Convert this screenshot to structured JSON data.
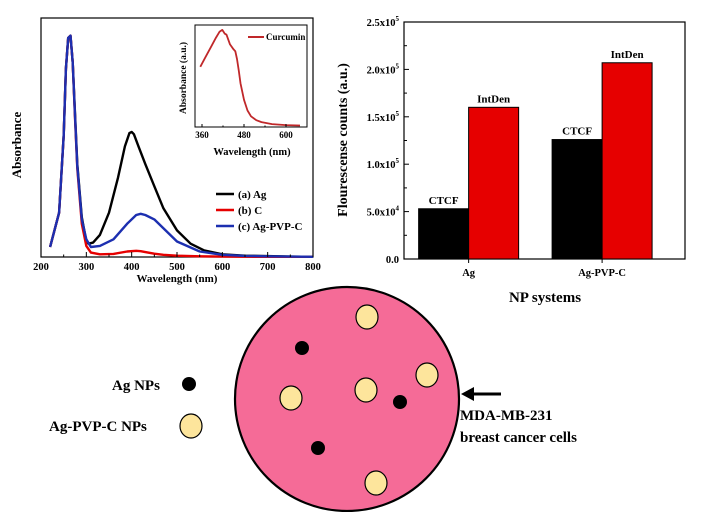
{
  "colors": {
    "black": "#000000",
    "red": "#e60000",
    "darkred": "#c0282a",
    "blue": "#1c2fb0",
    "cell": "#f56b97",
    "np_light": "#fde59c"
  },
  "chart_data": [
    {
      "type": "line",
      "id": "absorbance",
      "xlabel": "Wavelength (nm)",
      "ylabel": "Absorbance",
      "xlim": [
        200,
        800
      ],
      "ylim": [
        0,
        1.08
      ],
      "xticks": [
        "200",
        "300",
        "400",
        "500",
        "600",
        "700",
        "800"
      ],
      "xtick_values": [
        200,
        300,
        400,
        500,
        600,
        700,
        800
      ],
      "series": [
        {
          "name": "(a) Ag",
          "label": "(a) Ag",
          "color": "#000000",
          "x": [
            220,
            240,
            250,
            255,
            260,
            265,
            270,
            275,
            280,
            290,
            300,
            305,
            315,
            330,
            350,
            370,
            385,
            395,
            400,
            405,
            415,
            430,
            450,
            470,
            500,
            530,
            560,
            600,
            650,
            700,
            750,
            800
          ],
          "y": [
            0.045,
            0.2,
            0.55,
            0.85,
            0.99,
            1.0,
            0.88,
            0.65,
            0.42,
            0.18,
            0.07,
            0.06,
            0.065,
            0.1,
            0.2,
            0.36,
            0.5,
            0.56,
            0.565,
            0.555,
            0.5,
            0.42,
            0.32,
            0.22,
            0.12,
            0.06,
            0.03,
            0.012,
            0.006,
            0.004,
            0.002,
            0.001
          ]
        },
        {
          "name": "(b) C",
          "label": "(b) C",
          "color": "#e60000",
          "x": [
            220,
            240,
            250,
            255,
            260,
            265,
            270,
            275,
            280,
            290,
            300,
            310,
            330,
            360,
            390,
            410,
            420,
            430,
            450,
            470,
            500,
            550,
            600,
            700,
            800
          ],
          "y": [
            0.045,
            0.2,
            0.55,
            0.85,
            0.99,
            1.0,
            0.88,
            0.63,
            0.4,
            0.15,
            0.05,
            0.02,
            0.012,
            0.014,
            0.025,
            0.028,
            0.026,
            0.022,
            0.015,
            0.01,
            0.006,
            0.003,
            0.002,
            0.001,
            0.001
          ]
        },
        {
          "name": "(c) Ag-PVP-C",
          "label": "(c) Ag-PVP-C",
          "color": "#1c2fb0",
          "x": [
            220,
            240,
            250,
            255,
            260,
            265,
            270,
            275,
            280,
            290,
            300,
            310,
            330,
            360,
            390,
            410,
            420,
            430,
            450,
            470,
            500,
            550,
            600,
            650,
            700,
            800
          ],
          "y": [
            0.045,
            0.2,
            0.55,
            0.85,
            0.99,
            1.0,
            0.88,
            0.64,
            0.41,
            0.17,
            0.08,
            0.045,
            0.05,
            0.08,
            0.15,
            0.19,
            0.195,
            0.19,
            0.17,
            0.13,
            0.07,
            0.025,
            0.01,
            0.005,
            0.003,
            0.001
          ]
        }
      ],
      "legend_position": "bottom-right"
    },
    {
      "type": "line",
      "id": "curcumin_inset",
      "xlabel": "Wavelength (nm)",
      "ylabel": "Absorbance (a.u.)",
      "xlim": [
        340,
        660
      ],
      "ylim": [
        0,
        1.05
      ],
      "xticks": [
        "360",
        "480",
        "600"
      ],
      "xtick_values": [
        360,
        480,
        600
      ],
      "series": [
        {
          "name": "Curcumin",
          "label": "Curcumin",
          "color": "#c0282a",
          "x": [
            355,
            370,
            385,
            400,
            410,
            418,
            425,
            430,
            440,
            450,
            455,
            460,
            465,
            470,
            480,
            490,
            500,
            515,
            530,
            560,
            600,
            640
          ],
          "y": [
            0.62,
            0.72,
            0.82,
            0.92,
            0.98,
            1.0,
            0.96,
            0.95,
            0.85,
            0.8,
            0.78,
            0.7,
            0.58,
            0.45,
            0.28,
            0.17,
            0.11,
            0.07,
            0.05,
            0.03,
            0.02,
            0.015
          ]
        }
      ],
      "legend_position": "top-right"
    },
    {
      "type": "bar",
      "id": "fluorescence",
      "xlabel": "NP systems",
      "ylabel": "Flourescense counts (a.u.)",
      "categories": [
        "Ag",
        "Ag-PVP-C"
      ],
      "ylim": [
        0,
        250000
      ],
      "yticks": [
        {
          "value": 0,
          "mant": "0.0",
          "exp": ""
        },
        {
          "value": 50000,
          "mant": "5.0x10",
          "exp": "4"
        },
        {
          "value": 100000,
          "mant": "1.0x10",
          "exp": "5"
        },
        {
          "value": 150000,
          "mant": "1.5x10",
          "exp": "5"
        },
        {
          "value": 200000,
          "mant": "2.0x10",
          "exp": "5"
        },
        {
          "value": 250000,
          "mant": "2.5x10",
          "exp": "5"
        }
      ],
      "series": [
        {
          "name": "CTCF",
          "label": "CTCF",
          "color": "#000000",
          "values": [
            53000,
            126000
          ]
        },
        {
          "name": "IntDen",
          "label": "IntDen",
          "color": "#e60000",
          "values": [
            160000,
            207000
          ]
        }
      ]
    }
  ],
  "schematic": {
    "ag_label": "Ag NPs",
    "agpvpc_label": "Ag-PVP-C NPs",
    "cell_label_line1": "MDA-MB-231",
    "cell_label_line2": "breast cancer cells"
  }
}
